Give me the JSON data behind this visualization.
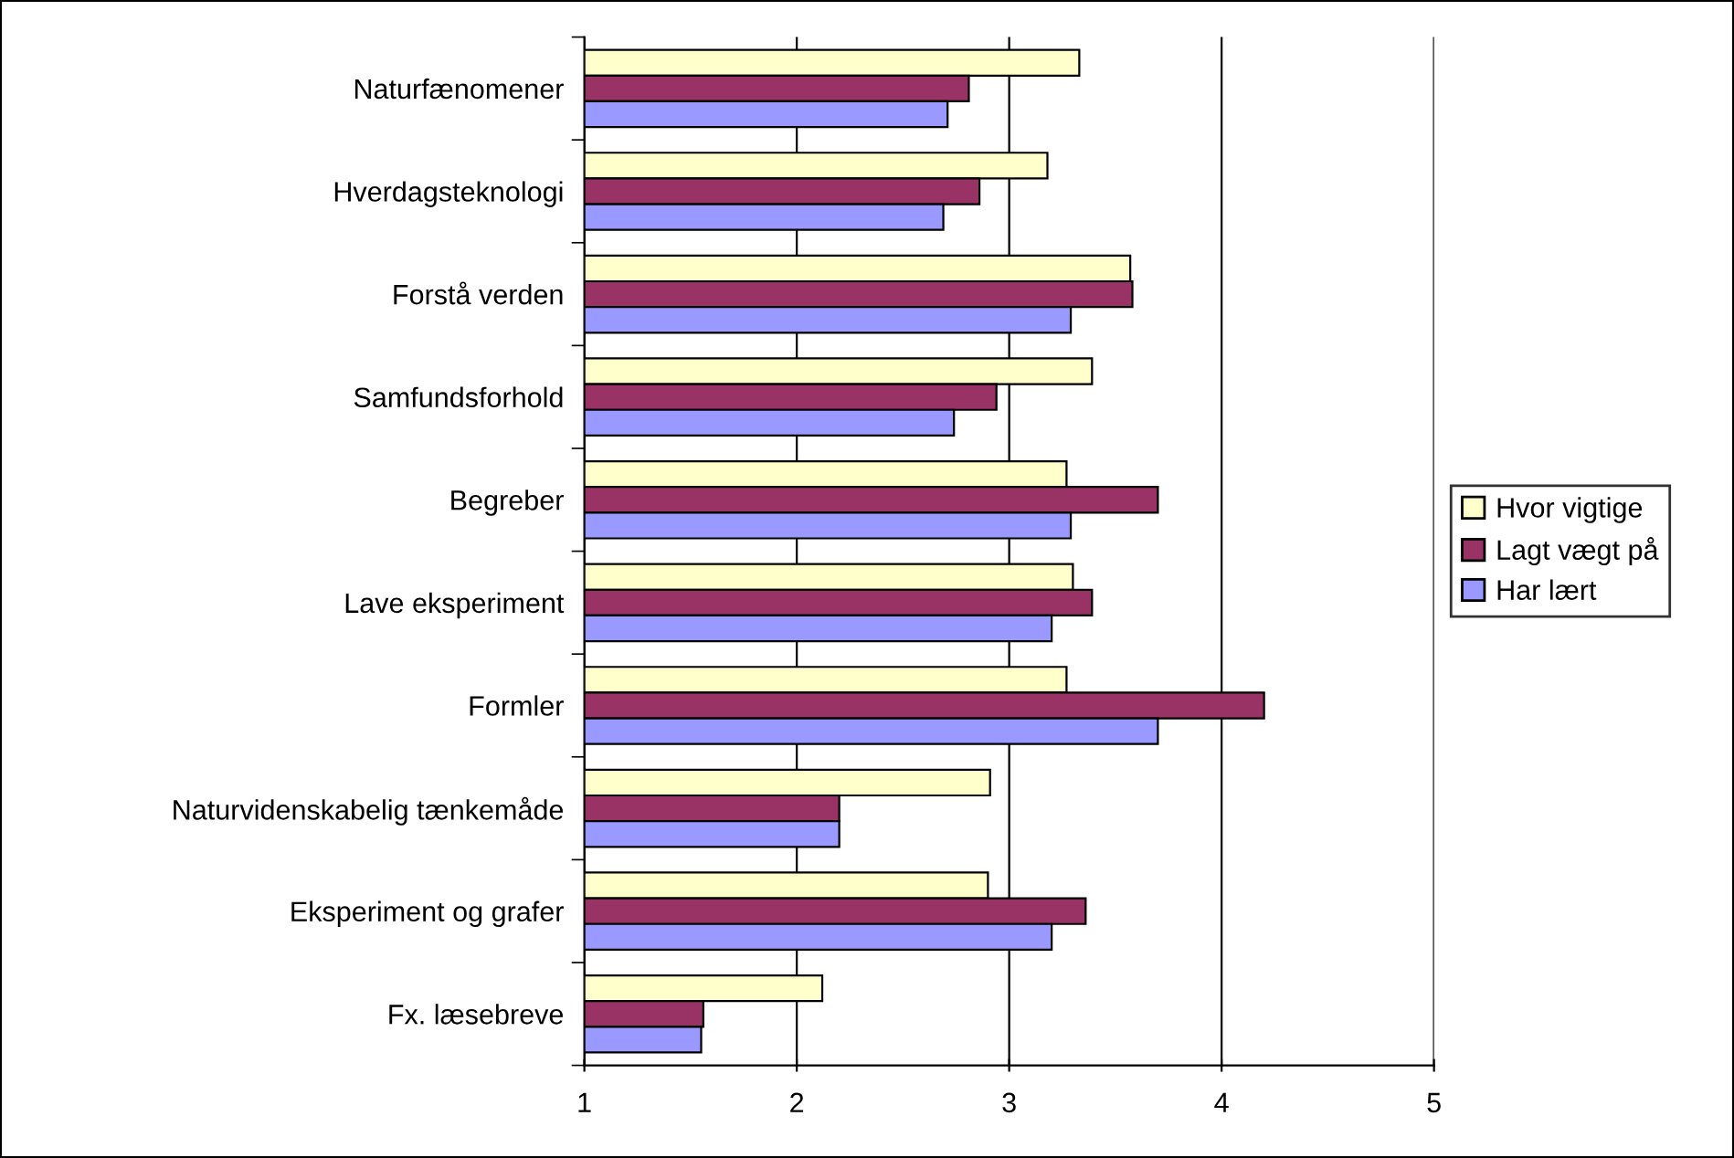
{
  "chart_data": {
    "type": "bar",
    "orientation": "horizontal",
    "categories": [
      "Naturfænomener",
      "Hverdagsteknologi",
      "Forstå verden",
      "Samfundsforhold",
      "Begreber",
      "Lave eksperiment",
      "Formler",
      "Naturvidenskabelig tænkemåde",
      "Eksperiment og grafer",
      "Fx. læsebreve"
    ],
    "series": [
      {
        "name": "Hvor vigtige",
        "color": "#ffffcc",
        "values": [
          3.33,
          3.18,
          3.57,
          3.39,
          3.27,
          3.3,
          3.27,
          2.91,
          2.9,
          2.12
        ]
      },
      {
        "name": "Lagt vægt på",
        "color": "#993366",
        "values": [
          2.81,
          2.86,
          3.58,
          2.94,
          3.7,
          3.39,
          4.2,
          2.2,
          3.36,
          1.56
        ]
      },
      {
        "name": "Har lært",
        "color": "#9999ff",
        "values": [
          2.71,
          2.69,
          3.29,
          2.74,
          3.29,
          3.2,
          3.7,
          2.2,
          3.2,
          1.55
        ]
      }
    ],
    "xlim": [
      1,
      5
    ],
    "xticks": [
      1,
      2,
      3,
      4,
      5
    ],
    "grid": "x",
    "legend": "right"
  }
}
